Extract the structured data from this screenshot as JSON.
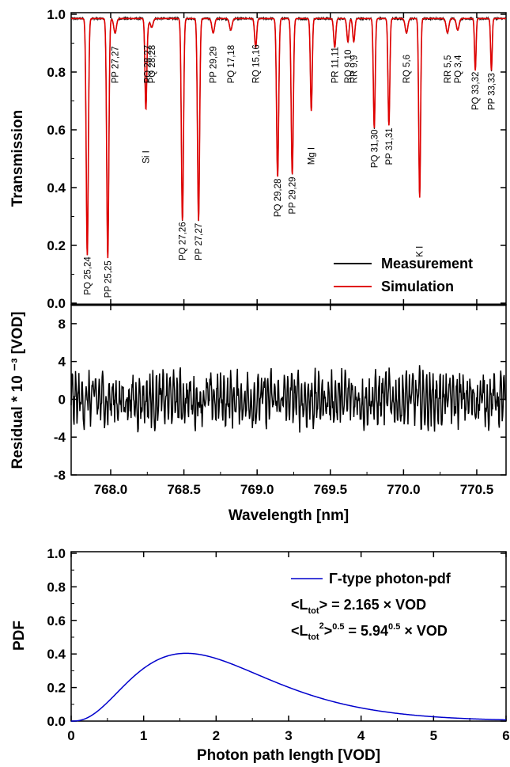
{
  "chart_data": [
    {
      "type": "line",
      "panel": "transmission",
      "ylabel": "Transmission",
      "xlim": [
        767.73,
        770.7
      ],
      "ylim": [
        0,
        1.0
      ],
      "yticks": [
        "0.0",
        "0.2",
        "0.4",
        "0.6",
        "0.8",
        "1.0"
      ],
      "yticks_vals": [
        0,
        0.2,
        0.4,
        0.6,
        0.8,
        1.0
      ],
      "legend_position": "bottom-right",
      "series": [
        {
          "name": "Measurement",
          "color": "#000000"
        },
        {
          "name": "Simulation",
          "color": "#e00000"
        }
      ],
      "baseline": 0.985,
      "absorption_lines": [
        {
          "x": 767.84,
          "depth": 0.82,
          "width": 0.016,
          "label": "PQ 25,24"
        },
        {
          "x": 767.98,
          "depth": 0.83,
          "width": 0.016,
          "label": "PP 25,25"
        },
        {
          "x": 768.03,
          "depth": 0.05,
          "width": 0.02,
          "label": "PP 27,27"
        },
        {
          "x": 768.24,
          "depth": 0.3,
          "width": 0.014,
          "label": "Si I"
        },
        {
          "x": 768.25,
          "depth": 0.03,
          "width": 0.02,
          "label": "PQ 28,27"
        },
        {
          "x": 768.28,
          "depth": 0.03,
          "width": 0.02,
          "label": "PQ 28,28"
        },
        {
          "x": 768.49,
          "depth": 0.7,
          "width": 0.016,
          "label": "PQ 27,26"
        },
        {
          "x": 768.6,
          "depth": 0.7,
          "width": 0.016,
          "label": "PP 27,27"
        },
        {
          "x": 768.7,
          "depth": 0.05,
          "width": 0.02,
          "label": "PP 29,29"
        },
        {
          "x": 768.82,
          "depth": 0.04,
          "width": 0.02,
          "label": "PQ 17,18"
        },
        {
          "x": 768.99,
          "depth": 0.1,
          "width": 0.016,
          "label": "RQ 15,16"
        },
        {
          "x": 769.14,
          "depth": 0.55,
          "width": 0.016,
          "label": "PQ 29,28"
        },
        {
          "x": 769.24,
          "depth": 0.54,
          "width": 0.016,
          "label": "PP 29,29"
        },
        {
          "x": 769.37,
          "depth": 0.32,
          "width": 0.014,
          "label": "Mg I"
        },
        {
          "x": 769.53,
          "depth": 0.1,
          "width": 0.016,
          "label": "PR 11,11"
        },
        {
          "x": 769.62,
          "depth": 0.08,
          "width": 0.016,
          "label": "RQ 9,10"
        },
        {
          "x": 769.66,
          "depth": 0.08,
          "width": 0.016,
          "label": "RR 9,9"
        },
        {
          "x": 769.8,
          "depth": 0.38,
          "width": 0.014,
          "label": "PQ 31,30"
        },
        {
          "x": 769.9,
          "depth": 0.37,
          "width": 0.014,
          "label": "PP 31,31"
        },
        {
          "x": 770.02,
          "depth": 0.05,
          "width": 0.02,
          "label": "RQ 5,6"
        },
        {
          "x": 770.11,
          "depth": 0.62,
          "width": 0.014,
          "label": "K I"
        },
        {
          "x": 770.3,
          "depth": 0.05,
          "width": 0.02,
          "label": "RR 5,5"
        },
        {
          "x": 770.37,
          "depth": 0.04,
          "width": 0.02,
          "label": "PQ 3,4"
        },
        {
          "x": 770.49,
          "depth": 0.18,
          "width": 0.012,
          "label": "PQ 33,32"
        },
        {
          "x": 770.6,
          "depth": 0.18,
          "width": 0.012,
          "label": "PP 33,33"
        }
      ]
    },
    {
      "type": "line",
      "panel": "residual",
      "ylabel": "Residual * 10 ⁻³ [VOD]",
      "xlabel": "Wavelength [nm]",
      "xlim": [
        767.73,
        770.7
      ],
      "ylim": [
        -8,
        10
      ],
      "xticks": [
        "768.0",
        "768.5",
        "769.0",
        "769.5",
        "770.0",
        "770.5"
      ],
      "xticks_vals": [
        768.0,
        768.5,
        769.0,
        769.5,
        770.0,
        770.5
      ],
      "yticks": [
        "-8",
        "-4",
        "0",
        "4",
        "8"
      ],
      "yticks_vals": [
        -8,
        -4,
        0,
        4,
        8
      ],
      "series": [
        {
          "name": "",
          "color": "#000000",
          "amplitude": 3.5,
          "min": -6,
          "max": 6
        }
      ]
    },
    {
      "type": "line",
      "panel": "pdf",
      "ylabel": "PDF",
      "xlabel": "Photon path length [VOD]",
      "xlim": [
        0,
        6
      ],
      "ylim": [
        0,
        1.0
      ],
      "xticks": [
        "0",
        "1",
        "2",
        "3",
        "4",
        "5",
        "6"
      ],
      "xticks_vals": [
        0,
        1,
        2,
        3,
        4,
        5,
        6
      ],
      "yticks": [
        "0.0",
        "0.2",
        "0.4",
        "0.6",
        "0.8",
        "1.0"
      ],
      "yticks_vals": [
        0,
        0.2,
        0.4,
        0.6,
        0.8,
        1.0
      ],
      "legend_position": "top-right",
      "mean": 2.165,
      "mean_sq": 5.94,
      "series": [
        {
          "name": "Γ-type photon-pdf",
          "color": "#0000cc"
        }
      ],
      "annotations": {
        "mean_prefix": "<L",
        "mean_sub": "tot",
        "mean_suffix": "> = 2.165 × VOD",
        "rms_prefix": "<L",
        "rms_sub": "tot",
        "rms_sup": "2",
        "rms_mid": ">",
        "rms_sup2": "0.5",
        "rms_eq": " = 5.94",
        "rms_sup3": "0.5",
        "rms_suffix": " × VOD"
      }
    }
  ]
}
